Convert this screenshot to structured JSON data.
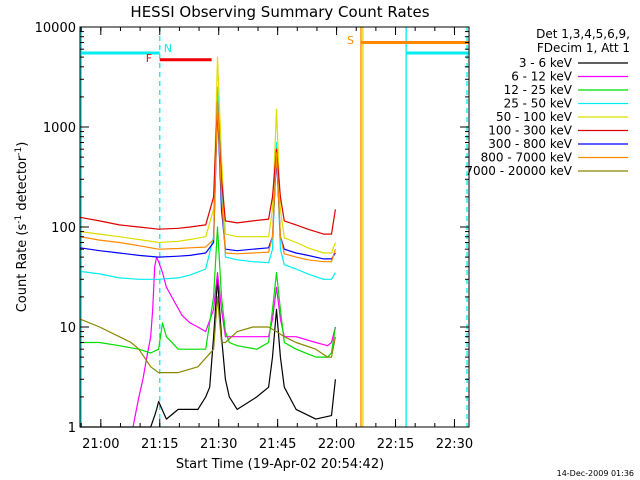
{
  "chart_data": {
    "type": "line",
    "title": "HESSI Observing Summary Count Rates",
    "xlabel": "Start Time (19-Apr-02 20:54:42)",
    "ylabel": "Count Rate (s⁻¹ detector⁻¹)",
    "ylabel_parts": {
      "base": "Count Rate (s",
      "sup1": "-1",
      "mid": " detector",
      "sup2": "-1",
      "end": ")"
    },
    "y_scale": "log",
    "ylim": [
      1,
      10000
    ],
    "xlim": [
      0,
      99
    ],
    "x_units": "minutes after start time",
    "x_ticks": [
      {
        "label": "21:00",
        "value": 5.3
      },
      {
        "label": "21:15",
        "value": 20.3
      },
      {
        "label": "21:30",
        "value": 35.3
      },
      {
        "label": "21:45",
        "value": 50.3
      },
      {
        "label": "22:00",
        "value": 65.3
      },
      {
        "label": "22:15",
        "value": 80.3
      },
      {
        "label": "22:30",
        "value": 95.3
      }
    ],
    "y_ticks": [
      {
        "label": "1",
        "value": 1
      },
      {
        "label": "10",
        "value": 10
      },
      {
        "label": "100",
        "value": 100
      },
      {
        "label": "1000",
        "value": 1000
      },
      {
        "label": "10000",
        "value": 10000
      }
    ],
    "legend": {
      "position": "right",
      "header": [
        "Det 1,3,4,5,6,9,",
        "FDecim 1, Att 1"
      ]
    },
    "series": [
      {
        "name": "3 - 6 keV",
        "color": "#000000",
        "x": [
          0,
          5,
          10,
          13.5,
          14,
          18,
          19,
          19.5,
          20,
          22,
          25,
          28,
          30,
          32,
          33,
          34,
          35,
          36,
          37,
          38,
          40,
          45,
          48,
          49,
          50,
          51,
          52,
          55,
          60,
          64,
          65
        ],
        "y": [
          1,
          1,
          1,
          1,
          1,
          1,
          1.3,
          1.5,
          1.8,
          1.2,
          1.5,
          1.5,
          1.5,
          2,
          2.5,
          8,
          30,
          8,
          3,
          2,
          1.5,
          2,
          2.5,
          5,
          15,
          5,
          2.5,
          1.5,
          1.2,
          1.3,
          3
        ]
      },
      {
        "name": "6 - 12 keV",
        "color": "#ff00ff",
        "x": [
          13.5,
          15,
          16,
          17,
          18,
          18.5,
          19,
          19.5,
          20,
          21,
          22,
          24,
          26,
          28,
          30,
          32,
          34,
          35,
          36,
          37,
          40,
          45,
          48,
          49,
          50,
          51,
          52,
          55,
          60,
          63,
          64,
          65
        ],
        "y": [
          1,
          2,
          3,
          5,
          8,
          15,
          40,
          50,
          45,
          35,
          25,
          18,
          13,
          11,
          10,
          9,
          15,
          35,
          15,
          8,
          8,
          8,
          8,
          12,
          25,
          12,
          8,
          8,
          7,
          6.5,
          7,
          10
        ]
      },
      {
        "name": "12 - 25 keV",
        "color": "#00dd00",
        "x": [
          0,
          5,
          10,
          15,
          18,
          20,
          21,
          22,
          25,
          28,
          30,
          32,
          34,
          35,
          36,
          37,
          38,
          40,
          45,
          48,
          49,
          50,
          51,
          52,
          55,
          60,
          63,
          64,
          65
        ],
        "y": [
          7,
          7,
          6.5,
          6,
          5.5,
          6,
          11,
          8,
          6,
          6,
          6,
          6,
          20,
          100,
          20,
          9,
          7,
          6.5,
          6,
          7,
          15,
          35,
          15,
          7,
          6,
          5,
          5,
          5.5,
          10
        ]
      },
      {
        "name": "25 - 50 keV",
        "color": "#00eeee",
        "x": [
          0,
          5,
          10,
          15,
          20,
          25,
          28,
          32,
          34,
          35,
          36,
          37,
          40,
          44,
          48,
          49,
          50,
          51,
          52,
          55,
          58,
          62,
          64,
          65
        ],
        "y": [
          36,
          34,
          31,
          30,
          30,
          31,
          33,
          38,
          80,
          2500,
          300,
          50,
          47,
          45,
          44,
          60,
          700,
          60,
          42,
          38,
          34,
          30,
          30,
          35
        ]
      },
      {
        "name": "50 - 100 keV",
        "color": "#dddd00",
        "x": [
          0,
          5,
          10,
          15,
          20,
          25,
          28,
          32,
          34,
          35,
          36,
          37,
          40,
          44,
          48,
          49,
          50,
          51,
          52,
          55,
          58,
          62,
          64,
          65
        ],
        "y": [
          90,
          85,
          80,
          75,
          70,
          72,
          75,
          80,
          150,
          5000,
          500,
          85,
          80,
          80,
          80,
          150,
          1500,
          150,
          78,
          70,
          62,
          55,
          55,
          70
        ]
      },
      {
        "name": "100 - 300 keV",
        "color": "#dd0000",
        "x": [
          0,
          5,
          10,
          15,
          20,
          25,
          28,
          32,
          34,
          35,
          36,
          37,
          40,
          44,
          48,
          49,
          50,
          51,
          52,
          55,
          58,
          62,
          64,
          65
        ],
        "y": [
          125,
          115,
          105,
          100,
          95,
          97,
          100,
          105,
          200,
          1800,
          300,
          115,
          110,
          115,
          120,
          200,
          600,
          200,
          115,
          105,
          95,
          85,
          85,
          150
        ]
      },
      {
        "name": "300 - 800 keV",
        "color": "#0000ff",
        "x": [
          0,
          5,
          10,
          15,
          20,
          25,
          28,
          32,
          34,
          35,
          36,
          37,
          40,
          44,
          48,
          49,
          50,
          51,
          52,
          55,
          58,
          62,
          64,
          65
        ],
        "y": [
          62,
          58,
          55,
          52,
          50,
          51,
          52,
          55,
          70,
          1600,
          150,
          60,
          58,
          60,
          62,
          80,
          500,
          80,
          60,
          55,
          52,
          48,
          48,
          55
        ]
      },
      {
        "name": "800 - 7000 keV",
        "color": "#ff8800",
        "x": [
          0,
          5,
          10,
          15,
          20,
          25,
          28,
          32,
          34,
          35,
          36,
          37,
          40,
          44,
          48,
          49,
          50,
          51,
          52,
          55,
          58,
          62,
          64,
          65
        ],
        "y": [
          80,
          74,
          70,
          65,
          60,
          61,
          62,
          63,
          75,
          1800,
          200,
          55,
          54,
          55,
          56,
          80,
          550,
          80,
          54,
          50,
          47,
          45,
          45,
          60
        ]
      },
      {
        "name": "7000 - 20000 keV",
        "color": "#888800",
        "x": [
          0,
          5,
          10,
          13,
          15,
          18,
          20,
          25,
          30,
          34,
          35,
          36,
          37,
          40,
          44,
          48,
          50,
          52,
          55,
          60,
          63,
          64,
          65
        ],
        "y": [
          12,
          10,
          8,
          7,
          6,
          4,
          3.5,
          3.5,
          4,
          6,
          20,
          7,
          7,
          9,
          10,
          10,
          9,
          8,
          7,
          6,
          5,
          5,
          8
        ]
      }
    ],
    "annotations": [
      {
        "label": "N",
        "x": 20.3,
        "color": "#00eeee"
      },
      {
        "label": "F",
        "x": 20.3,
        "color": "#ee0000"
      },
      {
        "label": "S",
        "x": 71.5,
        "color": "#ff8800"
      }
    ],
    "segments": [
      {
        "x0": 0,
        "x1": 20.3,
        "y": 5500,
        "color": "#00eeee"
      },
      {
        "x0": 20.3,
        "x1": 33.5,
        "y": 4700,
        "color": "#ee0000"
      },
      {
        "x0": 71.5,
        "x1": 99,
        "y": 7000,
        "color": "#ff8800"
      },
      {
        "x0": 83,
        "x1": 99,
        "y": 5500,
        "color": "#00eeee"
      }
    ],
    "vlines": [
      {
        "x": 0.3,
        "color": "#00eeee",
        "dash": false
      },
      {
        "x": 20.3,
        "color": "#00eeee",
        "dash": true
      },
      {
        "x": 71.5,
        "color": "#ff8800",
        "dash": false
      },
      {
        "x": 72,
        "color": "#dddd00",
        "dash": false
      },
      {
        "x": 83,
        "color": "#00eeee",
        "dash": false
      },
      {
        "x": 98.5,
        "color": "#00eeee",
        "dash": true
      }
    ]
  },
  "footer": {
    "timestamp": "14-Dec-2009 01:36"
  }
}
